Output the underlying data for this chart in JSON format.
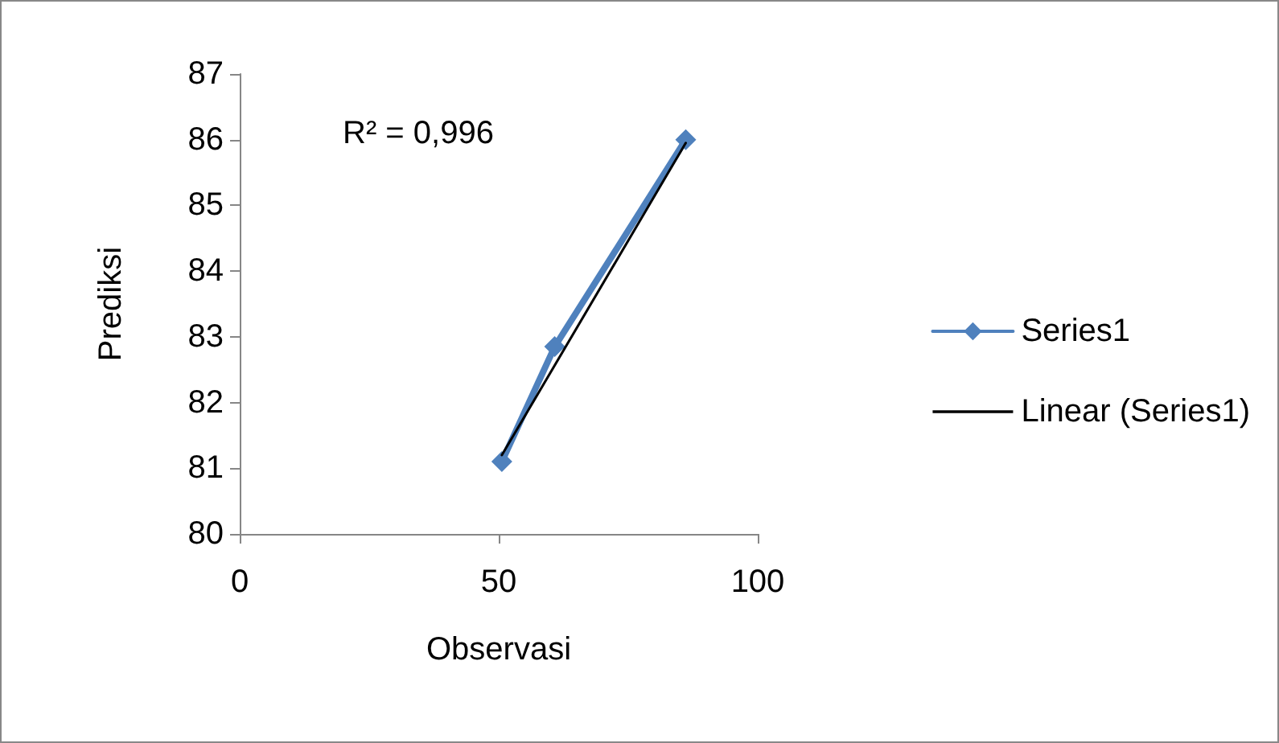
{
  "chart_data": {
    "type": "line",
    "xlabel": "Observasi",
    "ylabel": "Prediksi",
    "annotations": [
      "R² = 0,996"
    ],
    "xlim": [
      0,
      100
    ],
    "xticks": [
      0,
      50,
      100
    ],
    "ylim": [
      80,
      87
    ],
    "yticks": [
      80,
      81,
      82,
      83,
      84,
      85,
      86,
      87
    ],
    "legend": "right",
    "series": [
      {
        "name": "Series1",
        "color": "#4f81bd",
        "marker": "diamond",
        "line_style": "solid",
        "x": [
          50.6,
          60.8,
          86.1
        ],
        "values": [
          81.1,
          82.85,
          86.0
        ]
      },
      {
        "name": "Linear (Series1)",
        "color": "#000000",
        "marker": "none",
        "line_style": "solid",
        "x": [
          50.6,
          86.1
        ],
        "values": [
          81.2,
          85.95
        ]
      }
    ]
  }
}
